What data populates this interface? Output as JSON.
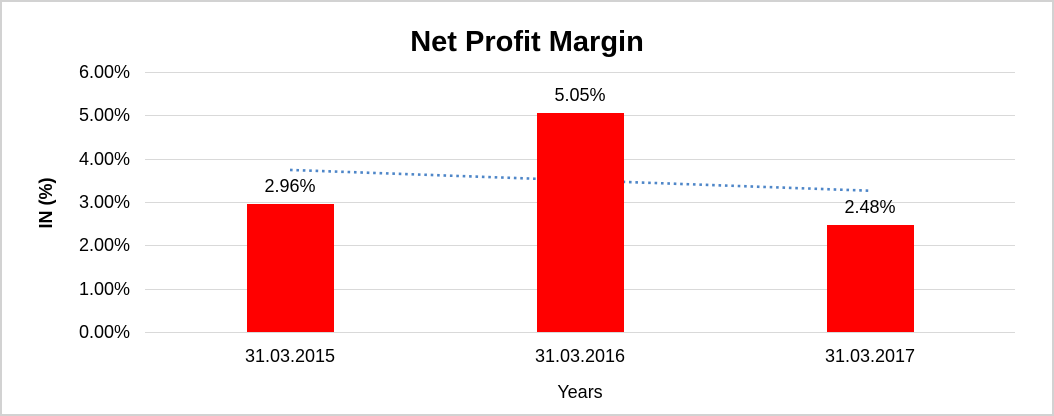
{
  "chart_data": {
    "type": "bar",
    "title": "Net Profit Margin",
    "categories": [
      "31.03.2015",
      "31.03.2016",
      "31.03.2017"
    ],
    "values": [
      2.96,
      5.05,
      2.48
    ],
    "data_labels": [
      "2.96%",
      "5.05%",
      "2.48%"
    ],
    "xlabel": "Years",
    "ylabel": "IN (%)",
    "ylim": [
      0,
      6
    ],
    "ytick_step": 1,
    "ytick_labels": [
      "0.00%",
      "1.00%",
      "2.00%",
      "3.00%",
      "4.00%",
      "5.00%",
      "6.00%"
    ],
    "grid": true,
    "legend": "none",
    "colors": {
      "bar": "#ff0000",
      "gridline": "#d9d9d9",
      "text": "#000000",
      "trendline": "#4e86c8",
      "frame_border": "#d2d2d2"
    },
    "trendline": {
      "type": "linear",
      "style": "dotted",
      "start_value": 3.74,
      "end_value": 3.26
    }
  }
}
